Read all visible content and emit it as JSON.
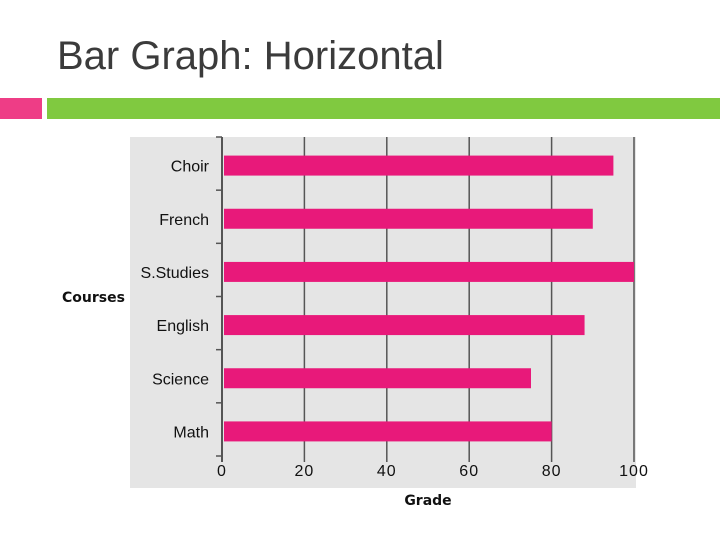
{
  "slide": {
    "title": "Bar Graph: Horizontal"
  },
  "colors": {
    "accent_pink": "#ee3d86",
    "accent_green": "#80c940",
    "bar": "#e8197a",
    "plot_background": "#e5e5e5",
    "gridline": "#555555"
  },
  "chart_data": {
    "type": "bar",
    "orientation": "horizontal",
    "categories": [
      "Choir",
      "French",
      "S.Studies",
      "English",
      "Science",
      "Math"
    ],
    "values": [
      95,
      90,
      100,
      88,
      75,
      80
    ],
    "title": "",
    "xlabel": "Grade",
    "ylabel": "Courses",
    "xlim": [
      0,
      100
    ],
    "xticks": [
      "0",
      "20",
      "40",
      "60",
      "80",
      "100"
    ],
    "grid": "vertical",
    "legend": "none"
  }
}
